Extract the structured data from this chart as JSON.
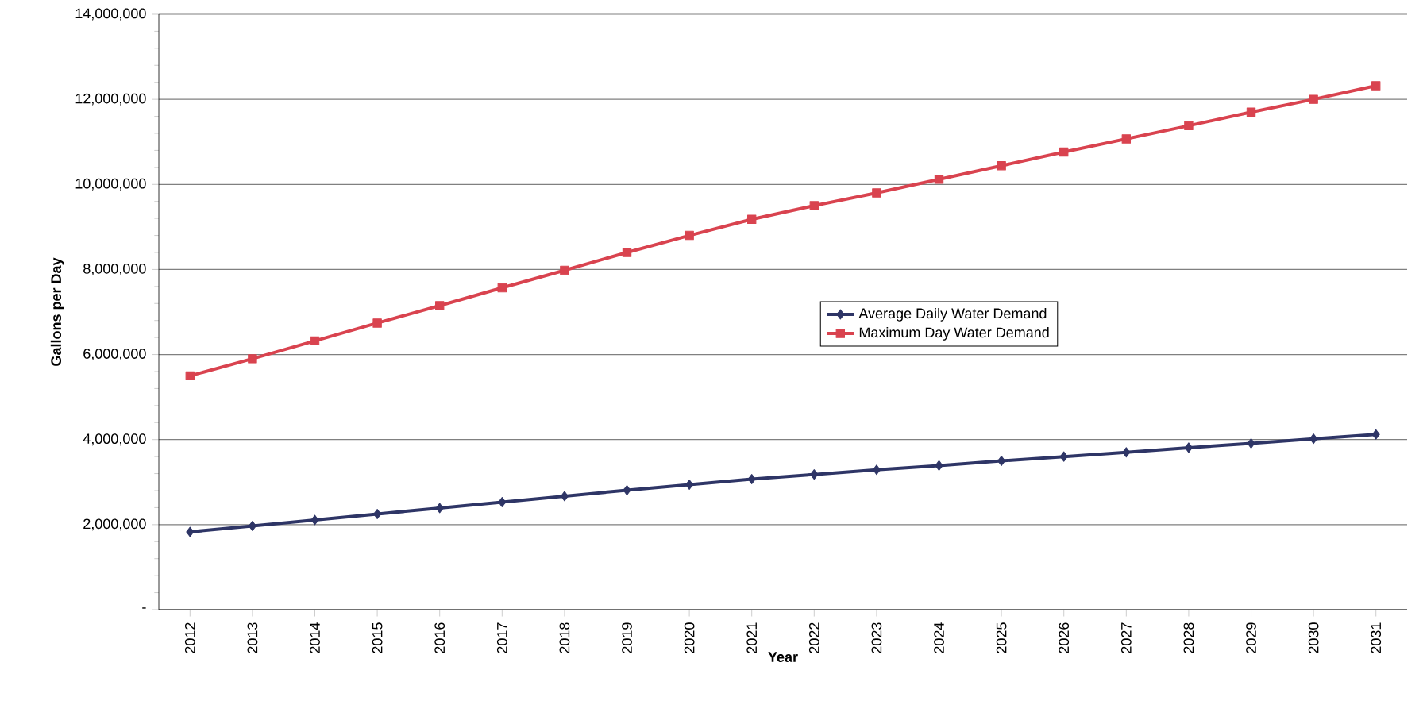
{
  "chart_data": {
    "type": "line",
    "xlabel": "Year",
    "ylabel": "Gallons per Day",
    "categories": [
      "2012",
      "2013",
      "2014",
      "2015",
      "2016",
      "2017",
      "2018",
      "2019",
      "2020",
      "2021",
      "2022",
      "2023",
      "2024",
      "2025",
      "2026",
      "2027",
      "2028",
      "2029",
      "2030",
      "2031"
    ],
    "series": [
      {
        "name": "Average Daily Water Demand",
        "color": "#2e3566",
        "marker": "diamond",
        "values": [
          1830000,
          1970000,
          2110000,
          2250000,
          2390000,
          2530000,
          2670000,
          2810000,
          2940000,
          3070000,
          3180000,
          3290000,
          3390000,
          3500000,
          3600000,
          3700000,
          3810000,
          3910000,
          4020000,
          4120000
        ]
      },
      {
        "name": "Maximum Day Water Demand",
        "color": "#d9434f",
        "marker": "square",
        "values": [
          5500000,
          5900000,
          6320000,
          6740000,
          7150000,
          7570000,
          7980000,
          8400000,
          8800000,
          9180000,
          9500000,
          9800000,
          10120000,
          10440000,
          10760000,
          11070000,
          11380000,
          11700000,
          12000000,
          12320000
        ]
      }
    ],
    "ylim": [
      0,
      14000000
    ],
    "yticks": [
      {
        "value": 0,
        "label": "-"
      },
      {
        "value": 2000000,
        "label": "2,000,000"
      },
      {
        "value": 4000000,
        "label": "4,000,000"
      },
      {
        "value": 6000000,
        "label": "6,000,000"
      },
      {
        "value": 8000000,
        "label": "8,000,000"
      },
      {
        "value": 10000000,
        "label": "10,000,000"
      },
      {
        "value": 12000000,
        "label": "12,000,000"
      },
      {
        "value": 14000000,
        "label": "14,000,000"
      }
    ],
    "grid": "y",
    "legend": "center",
    "line_style": "solid"
  }
}
